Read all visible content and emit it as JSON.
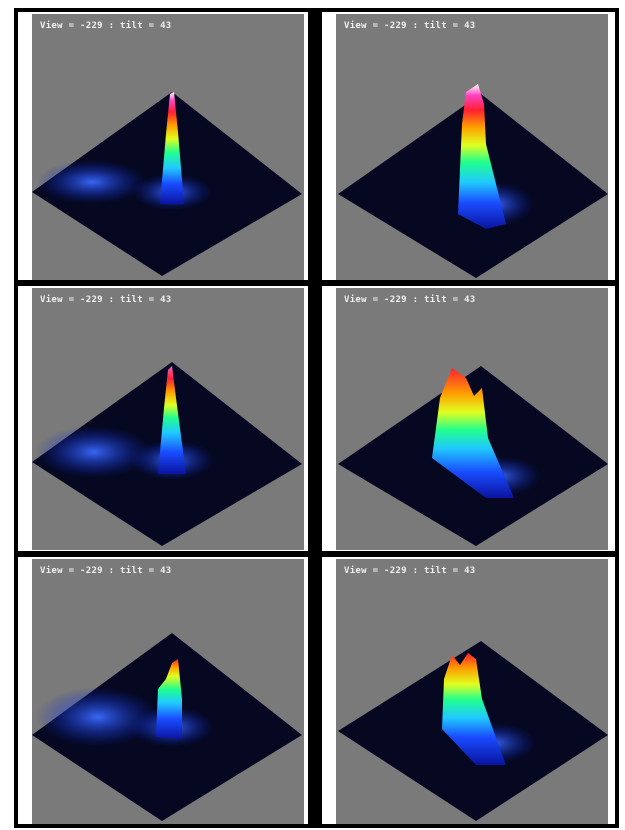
{
  "figure": {
    "panels": [
      {
        "caption": "View = -229 : tilt = 43",
        "column": "left",
        "row": 1
      },
      {
        "caption": "View = -229 : tilt = 43",
        "column": "right",
        "row": 1
      },
      {
        "caption": "View = -229 : tilt = 43",
        "column": "left",
        "row": 2
      },
      {
        "caption": "View = -229 : tilt = 43",
        "column": "right",
        "row": 2
      },
      {
        "caption": "View = -229 : tilt = 43",
        "column": "left",
        "row": 3
      },
      {
        "caption": "View = -229 : tilt = 43",
        "column": "right",
        "row": 3
      }
    ],
    "colors": {
      "panel_background": "#7a7a7a",
      "surface_floor": "#050820",
      "low_intensity": "#1a3cff",
      "high_intensity": "#ffffff",
      "border": "#000000"
    },
    "colormap": [
      "#0a14a0",
      "#1a4cff",
      "#20c8ff",
      "#20ff90",
      "#e0ff20",
      "#ffa000",
      "#ff2030",
      "#ff40c0",
      "#ffffff"
    ]
  }
}
